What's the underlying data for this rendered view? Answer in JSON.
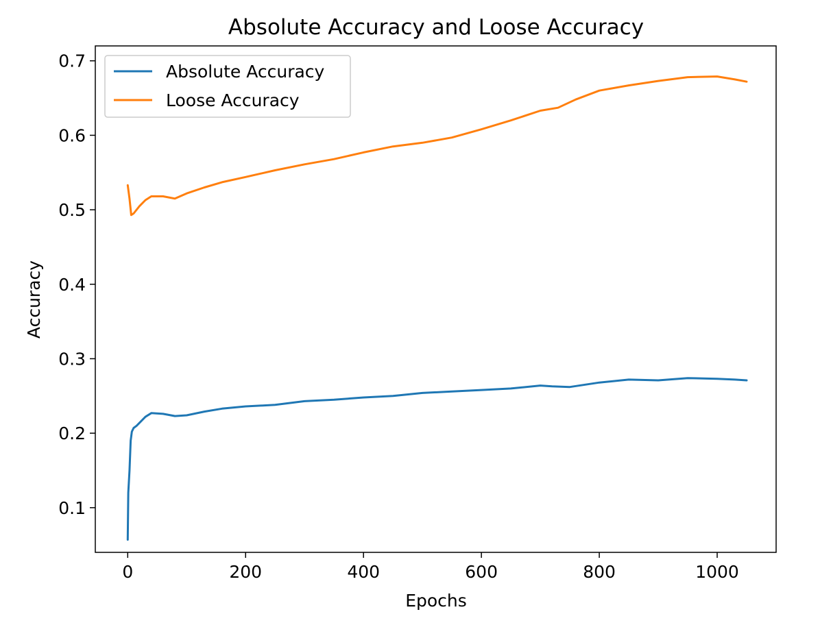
{
  "chart_data": {
    "type": "line",
    "title": "Absolute Accuracy and Loose Accuracy",
    "xlabel": "Epochs",
    "ylabel": "Accuracy",
    "xlim": [
      -55,
      1100
    ],
    "ylim": [
      0.04,
      0.72
    ],
    "xticks": [
      0,
      200,
      400,
      600,
      800,
      1000
    ],
    "yticks": [
      0.1,
      0.2,
      0.3,
      0.4,
      0.5,
      0.6,
      0.7
    ],
    "legend_position": "upper left",
    "grid": false,
    "series": [
      {
        "name": "Absolute Accuracy",
        "color": "#1f77b4",
        "points": [
          [
            0,
            0.057
          ],
          [
            1,
            0.12
          ],
          [
            3,
            0.15
          ],
          [
            5,
            0.19
          ],
          [
            7,
            0.202
          ],
          [
            10,
            0.207
          ],
          [
            15,
            0.21
          ],
          [
            20,
            0.214
          ],
          [
            30,
            0.222
          ],
          [
            40,
            0.227
          ],
          [
            60,
            0.226
          ],
          [
            80,
            0.223
          ],
          [
            100,
            0.224
          ],
          [
            130,
            0.229
          ],
          [
            160,
            0.233
          ],
          [
            200,
            0.236
          ],
          [
            250,
            0.238
          ],
          [
            300,
            0.243
          ],
          [
            350,
            0.245
          ],
          [
            400,
            0.248
          ],
          [
            450,
            0.25
          ],
          [
            500,
            0.254
          ],
          [
            550,
            0.256
          ],
          [
            600,
            0.258
          ],
          [
            650,
            0.26
          ],
          [
            700,
            0.264
          ],
          [
            720,
            0.263
          ],
          [
            750,
            0.262
          ],
          [
            800,
            0.268
          ],
          [
            850,
            0.272
          ],
          [
            900,
            0.271
          ],
          [
            950,
            0.274
          ],
          [
            1000,
            0.273
          ],
          [
            1030,
            0.272
          ],
          [
            1050,
            0.271
          ]
        ]
      },
      {
        "name": "Loose Accuracy",
        "color": "#ff7f0e",
        "points": [
          [
            0,
            0.533
          ],
          [
            3,
            0.515
          ],
          [
            6,
            0.493
          ],
          [
            10,
            0.495
          ],
          [
            20,
            0.505
          ],
          [
            30,
            0.513
          ],
          [
            40,
            0.518
          ],
          [
            60,
            0.518
          ],
          [
            80,
            0.515
          ],
          [
            100,
            0.522
          ],
          [
            130,
            0.53
          ],
          [
            160,
            0.537
          ],
          [
            200,
            0.544
          ],
          [
            250,
            0.553
          ],
          [
            300,
            0.561
          ],
          [
            350,
            0.568
          ],
          [
            400,
            0.577
          ],
          [
            450,
            0.585
          ],
          [
            500,
            0.59
          ],
          [
            550,
            0.597
          ],
          [
            600,
            0.608
          ],
          [
            650,
            0.62
          ],
          [
            700,
            0.633
          ],
          [
            730,
            0.637
          ],
          [
            760,
            0.648
          ],
          [
            800,
            0.66
          ],
          [
            850,
            0.667
          ],
          [
            900,
            0.673
          ],
          [
            950,
            0.678
          ],
          [
            1000,
            0.679
          ],
          [
            1030,
            0.675
          ],
          [
            1050,
            0.672
          ]
        ]
      }
    ]
  }
}
